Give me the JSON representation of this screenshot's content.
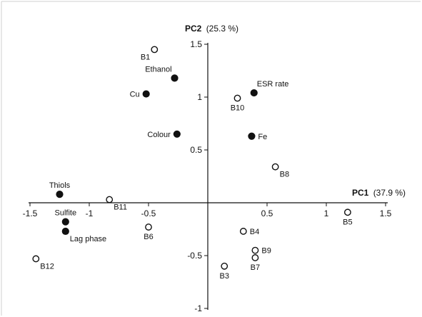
{
  "chart_data": {
    "type": "scatter",
    "title": "",
    "xlabel": {
      "name": "PC1",
      "pct": "(37.9 %)"
    },
    "ylabel": {
      "name": "PC2",
      "pct": "(25.3 %)"
    },
    "xlim": [
      -1.5,
      1.5
    ],
    "ylim": [
      -1,
      1.5
    ],
    "xticks": [
      {
        "v": -1.5,
        "t": "-1.5"
      },
      {
        "v": -1,
        "t": "-1"
      },
      {
        "v": -0.5,
        "t": "-0.5"
      },
      {
        "v": 0.5,
        "t": "0.5"
      },
      {
        "v": 1,
        "t": "1"
      },
      {
        "v": 1.5,
        "t": "1.5"
      }
    ],
    "yticks": [
      {
        "v": 1.5,
        "t": "1.5"
      },
      {
        "v": 1,
        "t": "1"
      },
      {
        "v": 0.5,
        "t": "0.5"
      },
      {
        "v": -0.5,
        "t": "-0.5"
      },
      {
        "v": -1,
        "t": "-1"
      }
    ],
    "series": [
      {
        "name": "",
        "marker": "filled-circle",
        "points": [
          {
            "label": "Ethanol",
            "x": -0.28,
            "y": 1.18,
            "pos": "above-left"
          },
          {
            "label": "Cu",
            "x": -0.52,
            "y": 1.03,
            "pos": "left"
          },
          {
            "label": "ESR rate",
            "x": 0.39,
            "y": 1.04,
            "pos": "above-right"
          },
          {
            "label": "Colour",
            "x": -0.26,
            "y": 0.65,
            "pos": "left"
          },
          {
            "label": "Fe",
            "x": 0.37,
            "y": 0.63,
            "pos": "right"
          },
          {
            "label": "Thiols",
            "x": -1.25,
            "y": 0.08,
            "pos": "above"
          },
          {
            "label": "Sulfite",
            "x": -1.2,
            "y": -0.18,
            "pos": "above"
          },
          {
            "label": "Lag phase",
            "x": -1.2,
            "y": -0.27,
            "pos": "below-right"
          }
        ]
      },
      {
        "name": "",
        "marker": "open-circle",
        "points": [
          {
            "label": "B1",
            "x": -0.45,
            "y": 1.45,
            "pos": "below-left"
          },
          {
            "label": "B10",
            "x": 0.25,
            "y": 0.99,
            "pos": "below"
          },
          {
            "label": "B8",
            "x": 0.57,
            "y": 0.34,
            "pos": "below-right"
          },
          {
            "label": "B11",
            "x": -0.83,
            "y": 0.03,
            "pos": "below-right"
          },
          {
            "label": "B6",
            "x": -0.5,
            "y": -0.23,
            "pos": "below"
          },
          {
            "label": "B5",
            "x": 1.18,
            "y": -0.09,
            "pos": "below"
          },
          {
            "label": "B4",
            "x": 0.3,
            "y": -0.27,
            "pos": "right"
          },
          {
            "label": "B9",
            "x": 0.4,
            "y": -0.45,
            "pos": "right"
          },
          {
            "label": "B7",
            "x": 0.4,
            "y": -0.52,
            "pos": "below"
          },
          {
            "label": "B3",
            "x": 0.14,
            "y": -0.6,
            "pos": "below"
          },
          {
            "label": "B12",
            "x": -1.45,
            "y": -0.53,
            "pos": "below-right"
          }
        ]
      }
    ]
  }
}
